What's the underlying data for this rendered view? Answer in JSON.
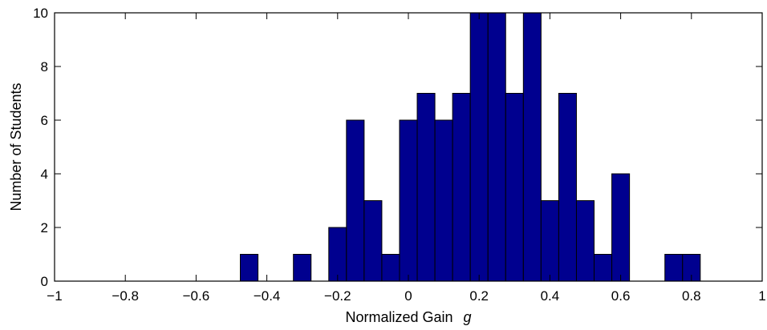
{
  "chart_data": {
    "type": "bar",
    "title": "",
    "xlabel": "Normalized Gain",
    "xlabel_symbol": "g",
    "ylabel": "Number of Students",
    "xlim": [
      -1,
      1
    ],
    "ylim": [
      0,
      10
    ],
    "xticks": [
      "−1",
      "−0.8",
      "−0.6",
      "−0.4",
      "−0.2",
      "0",
      "0.2",
      "0.4",
      "0.6",
      "0.8",
      "1"
    ],
    "yticks": [
      "0",
      "2",
      "4",
      "6",
      "8",
      "10"
    ],
    "grid": false,
    "bar_color": "#00008f",
    "bins": [
      {
        "x": -0.45,
        "count": 1
      },
      {
        "x": -0.3,
        "count": 1
      },
      {
        "x": -0.2,
        "count": 2
      },
      {
        "x": -0.15,
        "count": 6
      },
      {
        "x": -0.1,
        "count": 3
      },
      {
        "x": -0.05,
        "count": 1
      },
      {
        "x": 0.0,
        "count": 6
      },
      {
        "x": 0.05,
        "count": 7
      },
      {
        "x": 0.1,
        "count": 6
      },
      {
        "x": 0.15,
        "count": 7
      },
      {
        "x": 0.2,
        "count": 10
      },
      {
        "x": 0.25,
        "count": 10
      },
      {
        "x": 0.3,
        "count": 7
      },
      {
        "x": 0.35,
        "count": 10
      },
      {
        "x": 0.4,
        "count": 3
      },
      {
        "x": 0.45,
        "count": 7
      },
      {
        "x": 0.5,
        "count": 3
      },
      {
        "x": 0.55,
        "count": 1
      },
      {
        "x": 0.6,
        "count": 4
      },
      {
        "x": 0.75,
        "count": 1
      },
      {
        "x": 0.8,
        "count": 1
      }
    ],
    "bin_width": 0.05
  }
}
